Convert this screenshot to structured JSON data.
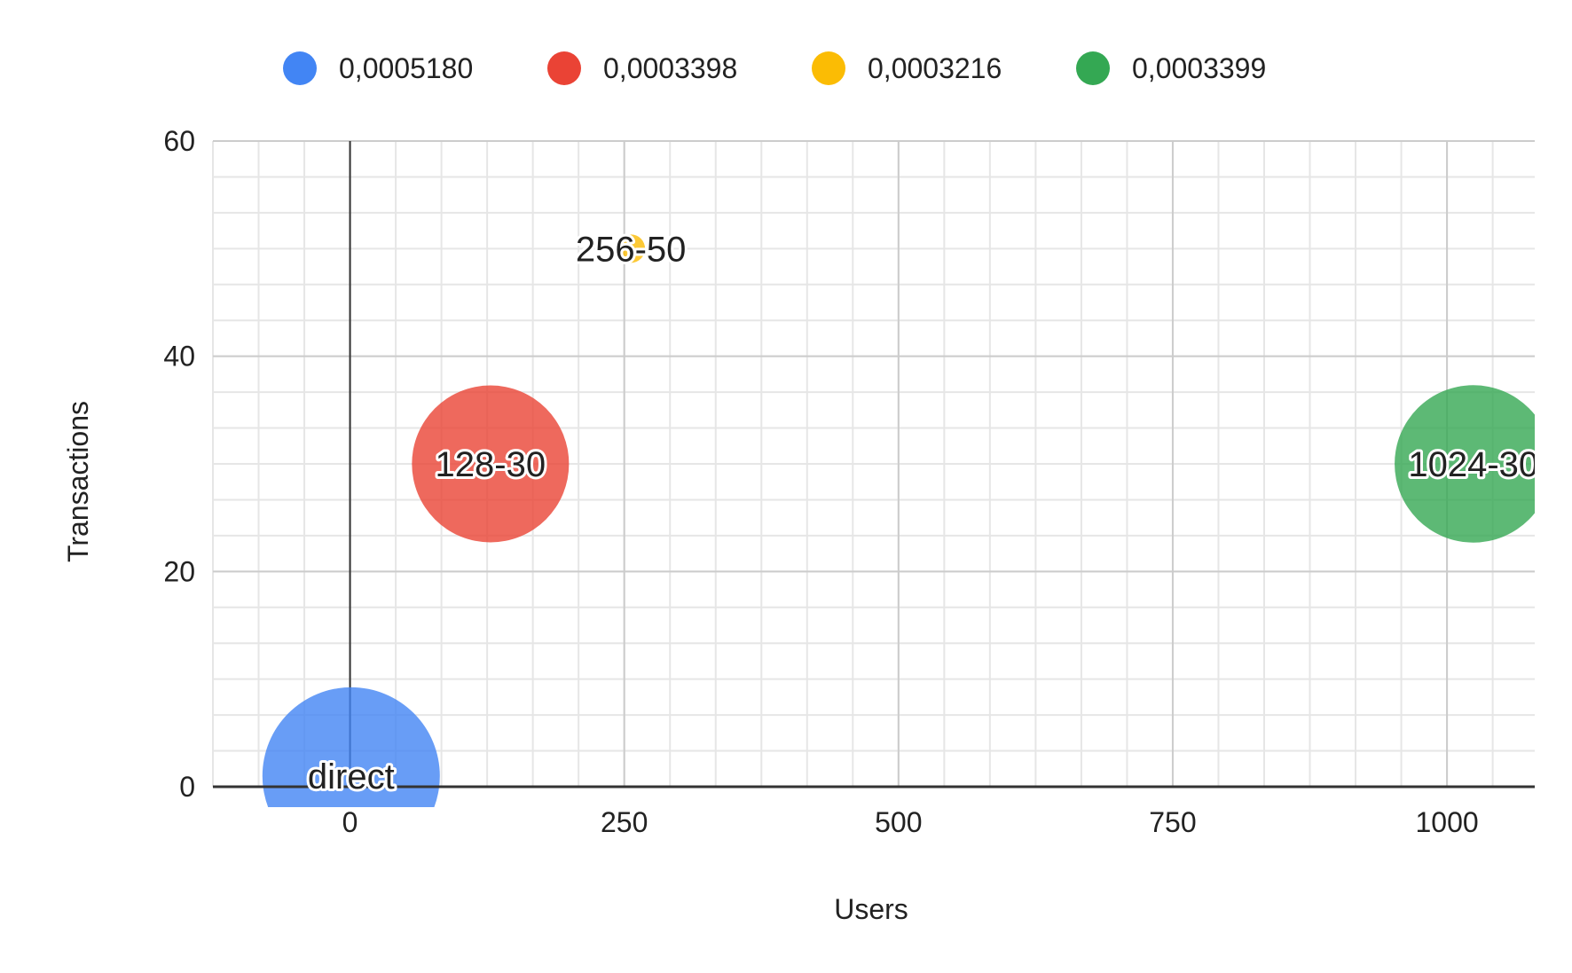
{
  "chart_data": {
    "type": "bubble",
    "title": "",
    "xlabel": "Users",
    "ylabel": "Transactions",
    "xlim": [
      -125,
      1080
    ],
    "ylim": [
      0,
      60
    ],
    "x_ticks": [
      0,
      250,
      500,
      750,
      1000
    ],
    "y_ticks": [
      0,
      20,
      40,
      60
    ],
    "grid": true,
    "legend_position": "top",
    "series": [
      {
        "name": "0,0005180",
        "label": "direct",
        "x": 1,
        "y": 1,
        "size": 0.000518,
        "color": "#4285F4"
      },
      {
        "name": "0,0003398",
        "label": "128-30",
        "x": 128,
        "y": 30,
        "size": 0.0003398,
        "color": "#EA4335"
      },
      {
        "name": "0,0003216",
        "label": "256-50",
        "x": 256,
        "y": 50,
        "size": 0.0003216,
        "color": "#FBBC04"
      },
      {
        "name": "0,0003399",
        "label": "1024-30",
        "x": 1024,
        "y": 30,
        "size": 0.0003399,
        "color": "#34A853"
      }
    ],
    "x_tick_labels": [
      "0",
      "250",
      "500",
      "750",
      "1000"
    ],
    "y_tick_labels": [
      "0",
      "20",
      "40",
      "60"
    ]
  }
}
